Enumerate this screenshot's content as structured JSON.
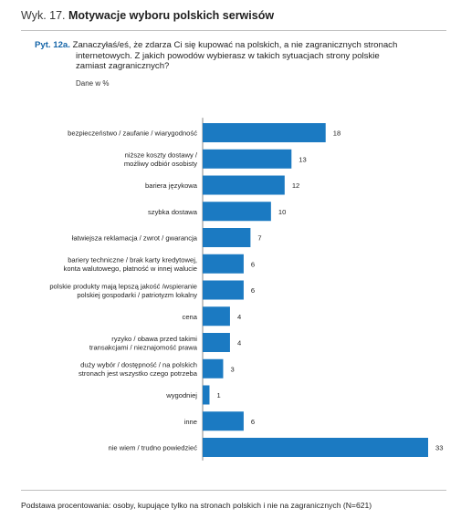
{
  "header": {
    "prefix": "Wyk. 17.",
    "title": "Motywacje wyboru polskich serwisów"
  },
  "question": {
    "id": "Pyt. 12a.",
    "line1": "Zanaczyłaś/eś, że zdarza Ci się kupować na polskich, a nie zagranicznych stronach",
    "line2": "internetowych. Z jakich powodów wybierasz w takich sytuacjach strony polskie",
    "line3": "zamiast zagranicznych?",
    "unit": "Dane w %"
  },
  "chart_data": {
    "type": "bar",
    "orientation": "horizontal",
    "bar_color": "#1b7ac2",
    "xlim": [
      0,
      33
    ],
    "categories": [
      [
        "bezpieczeństwo / zaufanie / wiarygodność"
      ],
      [
        "niższe koszty dostawy /",
        "możliwy odbiór osobisty"
      ],
      [
        "bariera językowa"
      ],
      [
        "szybka dostawa"
      ],
      [
        "łatwiejsza reklamacja / zwrot / gwarancja"
      ],
      [
        "bariery techniczne / brak karty kredytowej,",
        "konta walutowego, płatność w innej walucie"
      ],
      [
        "polskie produkty mają lepszą jakość /wspieranie",
        "polskiej gospodarki / patriotyzm lokalny"
      ],
      [
        "cena"
      ],
      [
        "ryzyko / obawa przed takimi",
        "transakcjami / nieznajomość prawa"
      ],
      [
        "duży wybór / dostępność / na polskich",
        "stronach jest wszystko czego potrzeba"
      ],
      [
        "wygodniej"
      ],
      [
        "inne"
      ],
      [
        "nie wiem / trudno powiedzieć"
      ]
    ],
    "values": [
      18,
      13,
      12,
      10,
      7,
      6,
      6,
      4,
      4,
      3,
      1,
      6,
      33
    ]
  },
  "footer": {
    "note": "Podstawa procentowania: osoby, kupujące tylko na stronach polskich i nie na zagranicznych (N=621)"
  }
}
